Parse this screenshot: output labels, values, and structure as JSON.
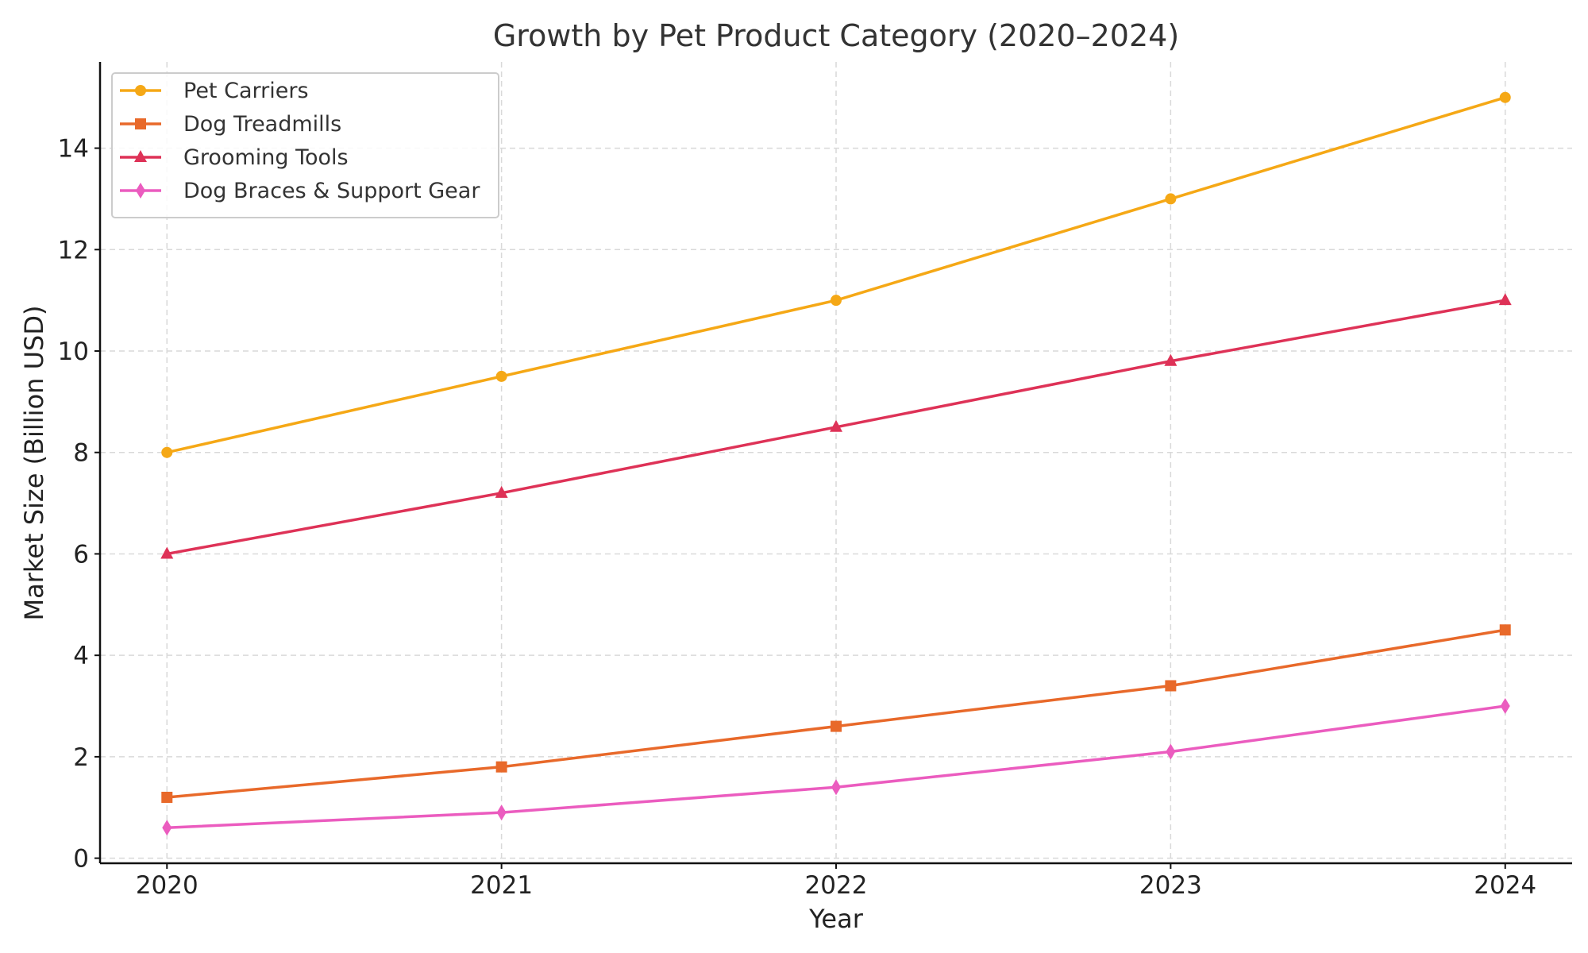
{
  "chart_data": {
    "type": "line",
    "title": "Growth by Pet Product Category (2020–2024)",
    "xlabel": "Year",
    "ylabel": "Market Size (Billion USD)",
    "categories": [
      "2020",
      "2021",
      "2022",
      "2023",
      "2024"
    ],
    "x": [
      2020,
      2021,
      2022,
      2023,
      2024
    ],
    "xlim": [
      2019.8,
      2024.2
    ],
    "ylim": [
      -0.1,
      15.7
    ],
    "yticks": [
      0,
      2,
      4,
      6,
      8,
      10,
      12,
      14
    ],
    "grid": true,
    "legend_position": "top-left",
    "series": [
      {
        "name": "Pet Carriers",
        "values": [
          8,
          9.5,
          11,
          13,
          15
        ],
        "color": "#F5A816",
        "marker": "circle"
      },
      {
        "name": "Dog Treadmills",
        "values": [
          1.2,
          1.8,
          2.6,
          3.4,
          4.5
        ],
        "color": "#E8692A",
        "marker": "square"
      },
      {
        "name": "Grooming Tools",
        "values": [
          6,
          7.2,
          8.5,
          9.8,
          11
        ],
        "color": "#DE3257",
        "marker": "triangle"
      },
      {
        "name": "Dog Braces & Support Gear",
        "values": [
          0.6,
          0.9,
          1.4,
          2.1,
          3
        ],
        "color": "#EB5CBF",
        "marker": "diamond"
      }
    ]
  }
}
